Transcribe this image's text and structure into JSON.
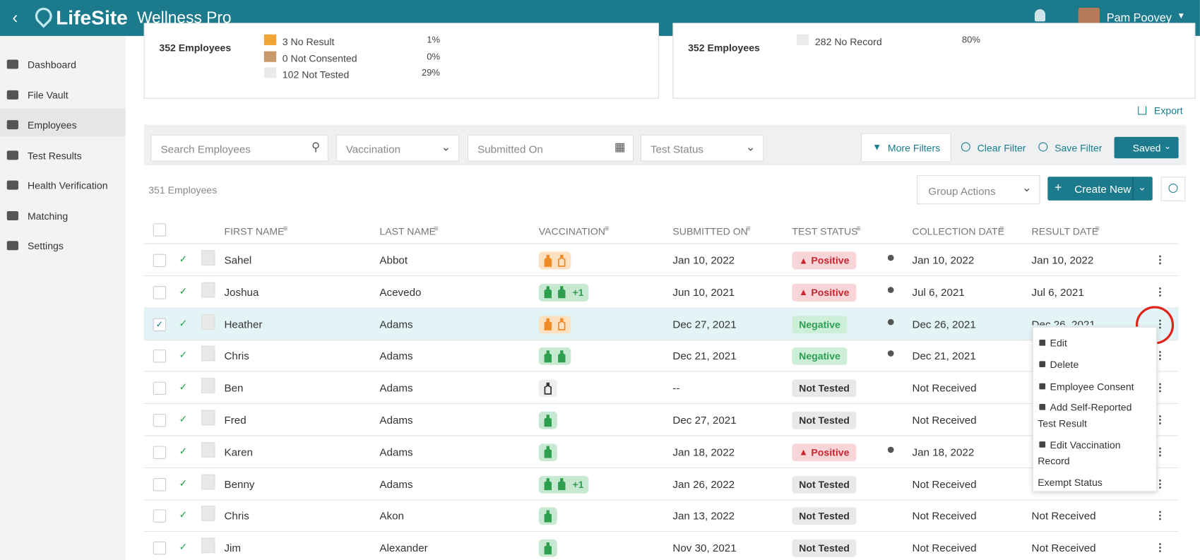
{
  "header": {
    "brand": "LifeSite",
    "product": "Wellness Pro",
    "user": "Pam Poovey"
  },
  "sidebar": [
    "Dashboard",
    "File Vault",
    "Employees",
    "Test Results",
    "Health Verification",
    "Matching",
    "Settings"
  ],
  "summary_left": {
    "total": "352 Employees",
    "items": [
      {
        "label": "3 No Result",
        "pct": "1%",
        "color": "#f0a535"
      },
      {
        "label": "0 Not Consented",
        "pct": "0%",
        "color": "#c9996b"
      },
      {
        "label": "102 Not Tested",
        "pct": "29%",
        "color": "#eaeaea"
      }
    ]
  },
  "summary_right": {
    "total": "352 Employees",
    "items": [
      {
        "label": "282 No Record",
        "pct": "80%",
        "color": "#eaeaea"
      }
    ]
  },
  "export": "Export",
  "filters": {
    "search": "Search Employees",
    "vaccination": "Vaccination",
    "submitted": "Submitted On",
    "status": "Test Status",
    "more": "More Filters",
    "clear": "Clear Filter",
    "save": "Save Filter",
    "saved": "Saved"
  },
  "count": "351 Employees",
  "group_actions": "Group Actions",
  "create_new": "Create New",
  "columns": [
    "FIRST NAME",
    "LAST NAME",
    "VACCINATION",
    "SUBMITTED ON",
    "TEST STATUS",
    "COLLECTION DATE",
    "RESULT DATE"
  ],
  "rows": [
    {
      "first": "Sahel",
      "last": "Abbot",
      "vacc": {
        "style": "orange",
        "doses": 2
      },
      "submitted": "Jan 10, 2022",
      "status": "Positive",
      "collection": "Jan 10, 2022",
      "result": "Jan 10, 2022"
    },
    {
      "first": "Joshua",
      "last": "Acevedo",
      "vacc": {
        "style": "green",
        "doses": 2,
        "extra": "+1"
      },
      "submitted": "Jun 10, 2021",
      "status": "Positive",
      "collection": "Jul 6, 2021",
      "result": "Jul 6, 2021"
    },
    {
      "first": "Heather",
      "last": "Adams",
      "vacc": {
        "style": "orange",
        "doses": 2
      },
      "submitted": "Dec 27, 2021",
      "status": "Negative",
      "collection": "Dec 26, 2021",
      "result": "Dec 26, 2021",
      "selected": true
    },
    {
      "first": "Chris",
      "last": "Adams",
      "vacc": {
        "style": "green",
        "doses": 2
      },
      "submitted": "Dec 21, 2021",
      "status": "Negative",
      "collection": "Dec 21, 2021",
      "result": null
    },
    {
      "first": "Ben",
      "last": "Adams",
      "vacc": {
        "style": "gray",
        "doses": 1
      },
      "submitted": "--",
      "status": "Not Tested",
      "collection": "Not Received",
      "result": null
    },
    {
      "first": "Fred",
      "last": "Adams",
      "vacc": {
        "style": "green",
        "doses": 1
      },
      "submitted": "Dec 27, 2021",
      "status": "Not Tested",
      "collection": "Not Received",
      "result": null
    },
    {
      "first": "Karen",
      "last": "Adams",
      "vacc": {
        "style": "green",
        "doses": 1
      },
      "submitted": "Jan 18, 2022",
      "status": "Positive",
      "collection": "Jan 18, 2022",
      "result": null
    },
    {
      "first": "Benny",
      "last": "Adams",
      "vacc": {
        "style": "green",
        "doses": 2,
        "extra": "+1"
      },
      "submitted": "Jan 26, 2022",
      "status": "Not Tested",
      "collection": "Not Received",
      "result": null
    },
    {
      "first": "Chris",
      "last": "Akon",
      "vacc": {
        "style": "green",
        "doses": 1
      },
      "submitted": "Jan 13, 2022",
      "status": "Not Tested",
      "collection": "Not Received",
      "result": "Not Received"
    },
    {
      "first": "Jim",
      "last": "Alexander",
      "vacc": {
        "style": "green",
        "doses": 1
      },
      "submitted": "Nov 30, 2021",
      "status": "Not Tested",
      "collection": "Not Received",
      "result": "Not Received"
    }
  ],
  "menu": [
    "Edit",
    "Delete",
    "Employee Consent",
    "Add Self-Reported Test Result",
    "Edit Vaccination Record",
    "Exempt Status"
  ]
}
